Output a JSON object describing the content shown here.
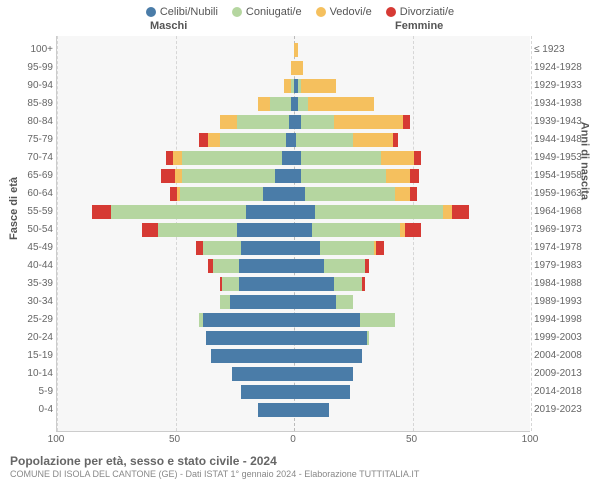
{
  "legend": {
    "items": [
      {
        "label": "Celibi/Nubili",
        "color": "#4a7ca8"
      },
      {
        "label": "Coniugati/e",
        "color": "#b5d6a0"
      },
      {
        "label": "Vedovi/e",
        "color": "#f5c05e"
      },
      {
        "label": "Divorziati/e",
        "color": "#d63a34"
      }
    ]
  },
  "headers": {
    "male": "Maschi",
    "female": "Femmine"
  },
  "axis": {
    "y_left_title": "Fasce di età",
    "y_right_title": "Anni di nascita",
    "x_max": 100,
    "x_ticks": [
      100,
      50,
      0,
      50,
      100
    ]
  },
  "colors": {
    "single": "#4a7ca8",
    "married": "#b5d6a0",
    "widowed": "#f5c05e",
    "divorced": "#d63a34",
    "plot_bg": "#f7f7f7",
    "grid": "#d6d6d6"
  },
  "rows": [
    {
      "age": "100+",
      "year": "≤ 1923",
      "m": {
        "single": 0,
        "married": 0,
        "widowed": 0,
        "divorced": 0
      },
      "f": {
        "single": 0,
        "married": 0,
        "widowed": 2,
        "divorced": 0
      }
    },
    {
      "age": "95-99",
      "year": "1924-1928",
      "m": {
        "single": 0,
        "married": 0,
        "widowed": 1,
        "divorced": 0
      },
      "f": {
        "single": 0,
        "married": 0,
        "widowed": 4,
        "divorced": 0
      }
    },
    {
      "age": "90-94",
      "year": "1929-1933",
      "m": {
        "single": 0,
        "married": 1,
        "widowed": 3,
        "divorced": 0
      },
      "f": {
        "single": 2,
        "married": 1,
        "widowed": 15,
        "divorced": 0
      }
    },
    {
      "age": "85-89",
      "year": "1934-1938",
      "m": {
        "single": 1,
        "married": 9,
        "widowed": 5,
        "divorced": 0
      },
      "f": {
        "single": 2,
        "married": 4,
        "widowed": 28,
        "divorced": 0
      }
    },
    {
      "age": "80-84",
      "year": "1939-1943",
      "m": {
        "single": 2,
        "married": 22,
        "widowed": 7,
        "divorced": 0
      },
      "f": {
        "single": 3,
        "married": 14,
        "widowed": 29,
        "divorced": 3
      }
    },
    {
      "age": "75-79",
      "year": "1944-1948",
      "m": {
        "single": 3,
        "married": 28,
        "widowed": 5,
        "divorced": 4
      },
      "f": {
        "single": 1,
        "married": 24,
        "widowed": 17,
        "divorced": 2
      }
    },
    {
      "age": "70-74",
      "year": "1949-1953",
      "m": {
        "single": 5,
        "married": 42,
        "widowed": 4,
        "divorced": 3
      },
      "f": {
        "single": 3,
        "married": 34,
        "widowed": 14,
        "divorced": 3
      }
    },
    {
      "age": "65-69",
      "year": "1954-1958",
      "m": {
        "single": 8,
        "married": 39,
        "widowed": 3,
        "divorced": 6
      },
      "f": {
        "single": 3,
        "married": 36,
        "widowed": 10,
        "divorced": 4
      }
    },
    {
      "age": "60-64",
      "year": "1959-1963",
      "m": {
        "single": 13,
        "married": 35,
        "widowed": 1,
        "divorced": 3
      },
      "f": {
        "single": 5,
        "married": 38,
        "widowed": 6,
        "divorced": 3
      }
    },
    {
      "age": "55-59",
      "year": "1964-1968",
      "m": {
        "single": 20,
        "married": 57,
        "widowed": 0,
        "divorced": 8
      },
      "f": {
        "single": 9,
        "married": 54,
        "widowed": 4,
        "divorced": 7
      }
    },
    {
      "age": "50-54",
      "year": "1969-1973",
      "m": {
        "single": 24,
        "married": 33,
        "widowed": 0,
        "divorced": 7
      },
      "f": {
        "single": 8,
        "married": 37,
        "widowed": 2,
        "divorced": 7
      }
    },
    {
      "age": "45-49",
      "year": "1974-1978",
      "m": {
        "single": 22,
        "married": 16,
        "widowed": 0,
        "divorced": 3
      },
      "f": {
        "single": 11,
        "married": 23,
        "widowed": 1,
        "divorced": 3
      }
    },
    {
      "age": "40-44",
      "year": "1979-1983",
      "m": {
        "single": 23,
        "married": 11,
        "widowed": 0,
        "divorced": 2
      },
      "f": {
        "single": 13,
        "married": 17,
        "widowed": 0,
        "divorced": 2
      }
    },
    {
      "age": "35-39",
      "year": "1984-1988",
      "m": {
        "single": 23,
        "married": 7,
        "widowed": 0,
        "divorced": 1
      },
      "f": {
        "single": 17,
        "married": 12,
        "widowed": 0,
        "divorced": 1
      }
    },
    {
      "age": "30-34",
      "year": "1989-1993",
      "m": {
        "single": 27,
        "married": 4,
        "widowed": 0,
        "divorced": 0
      },
      "f": {
        "single": 18,
        "married": 7,
        "widowed": 0,
        "divorced": 0
      }
    },
    {
      "age": "25-29",
      "year": "1994-1998",
      "m": {
        "single": 38,
        "married": 2,
        "widowed": 0,
        "divorced": 0
      },
      "f": {
        "single": 28,
        "married": 15,
        "widowed": 0,
        "divorced": 0
      }
    },
    {
      "age": "20-24",
      "year": "1999-2003",
      "m": {
        "single": 37,
        "married": 0,
        "widowed": 0,
        "divorced": 0
      },
      "f": {
        "single": 31,
        "married": 1,
        "widowed": 0,
        "divorced": 0
      }
    },
    {
      "age": "15-19",
      "year": "2004-2008",
      "m": {
        "single": 35,
        "married": 0,
        "widowed": 0,
        "divorced": 0
      },
      "f": {
        "single": 29,
        "married": 0,
        "widowed": 0,
        "divorced": 0
      }
    },
    {
      "age": "10-14",
      "year": "2009-2013",
      "m": {
        "single": 26,
        "married": 0,
        "widowed": 0,
        "divorced": 0
      },
      "f": {
        "single": 25,
        "married": 0,
        "widowed": 0,
        "divorced": 0
      }
    },
    {
      "age": "5-9",
      "year": "2014-2018",
      "m": {
        "single": 22,
        "married": 0,
        "widowed": 0,
        "divorced": 0
      },
      "f": {
        "single": 24,
        "married": 0,
        "widowed": 0,
        "divorced": 0
      }
    },
    {
      "age": "0-4",
      "year": "2019-2023",
      "m": {
        "single": 15,
        "married": 0,
        "widowed": 0,
        "divorced": 0
      },
      "f": {
        "single": 15,
        "married": 0,
        "widowed": 0,
        "divorced": 0
      }
    }
  ],
  "footer": {
    "title": "Popolazione per età, sesso e stato civile - 2024",
    "sub": "COMUNE DI ISOLA DEL CANTONE (GE) - Dati ISTAT 1° gennaio 2024 - Elaborazione TUTTITALIA.IT"
  }
}
